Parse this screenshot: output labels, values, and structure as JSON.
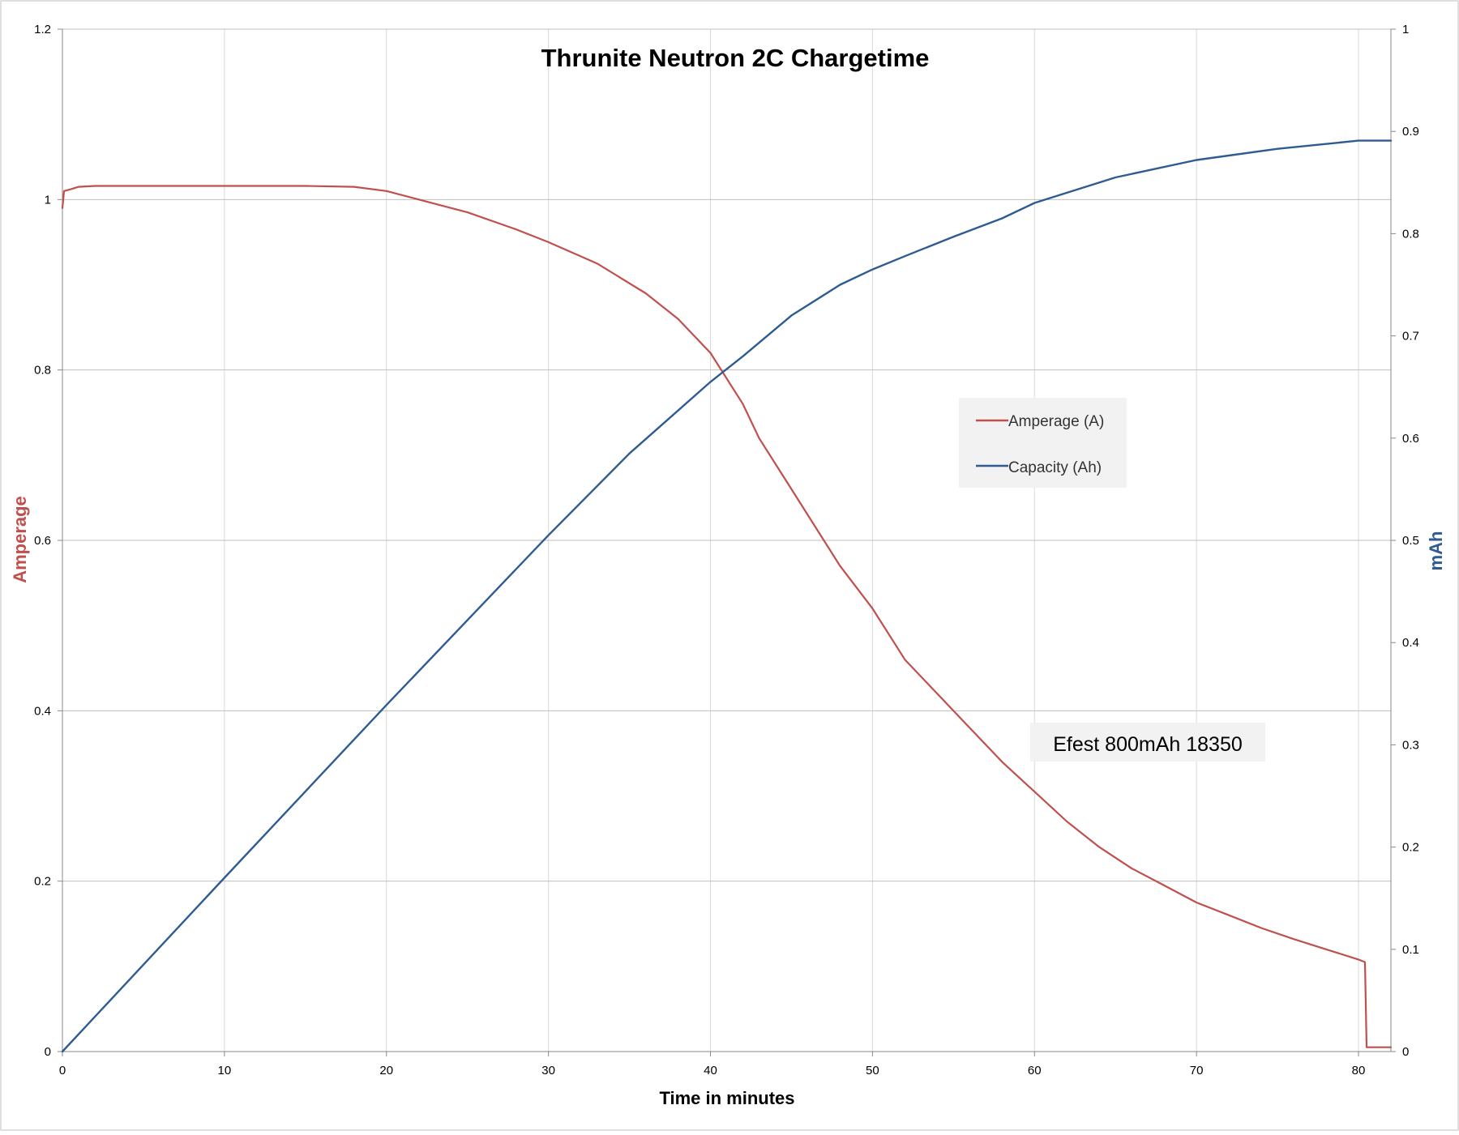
{
  "chart_data": {
    "type": "line",
    "title": "Thrunite Neutron 2C Chargetime",
    "xlabel": "Time in minutes",
    "ylabel_left": "Amperage",
    "ylabel_right": "mAh",
    "annotation": "Efest 800mAh 18350",
    "xlim": [
      0,
      82
    ],
    "ylim_left": [
      0,
      1.2
    ],
    "ylim_right": [
      0,
      1
    ],
    "x_ticks": [
      "0",
      "10",
      "20",
      "30",
      "40",
      "50",
      "60",
      "70",
      "80"
    ],
    "y_left_ticks": [
      "0",
      "0.2",
      "0.4",
      "0.6",
      "0.8",
      "1",
      "1.2"
    ],
    "y_right_ticks": [
      "0",
      "0.1",
      "0.2",
      "0.3",
      "0.4",
      "0.5",
      "0.6",
      "0.7",
      "0.8",
      "0.9",
      "1"
    ],
    "grid": true,
    "legend_position": "center-right",
    "series": [
      {
        "name": "Amperage (A)",
        "axis": "left",
        "color": "#c0504d",
        "x": [
          0,
          0.1,
          0.5,
          1,
          2,
          5,
          10,
          15,
          18,
          20,
          22,
          25,
          28,
          30,
          33,
          36,
          38,
          40,
          41,
          42,
          43,
          45,
          47,
          48,
          50,
          52,
          54,
          56,
          58,
          60,
          62,
          64,
          66,
          68,
          70,
          72,
          74,
          76,
          78,
          80,
          80.4,
          80.5,
          82
        ],
        "y": [
          0.99,
          1.01,
          1.012,
          1.015,
          1.016,
          1.016,
          1.016,
          1.016,
          1.015,
          1.01,
          1.0,
          0.985,
          0.965,
          0.95,
          0.925,
          0.89,
          0.86,
          0.82,
          0.79,
          0.76,
          0.72,
          0.66,
          0.6,
          0.57,
          0.52,
          0.46,
          0.42,
          0.38,
          0.34,
          0.305,
          0.27,
          0.24,
          0.215,
          0.195,
          0.175,
          0.16,
          0.145,
          0.132,
          0.12,
          0.108,
          0.105,
          0.005,
          0.005
        ]
      },
      {
        "name": "Capacity (Ah)",
        "axis": "right",
        "color": "#2e5c92",
        "x": [
          0,
          10,
          20,
          30,
          35,
          40,
          42,
          45,
          48,
          50,
          52,
          55,
          58,
          60,
          65,
          70,
          75,
          80,
          82
        ],
        "y": [
          0,
          0.17,
          0.339,
          0.505,
          0.585,
          0.655,
          0.68,
          0.72,
          0.75,
          0.765,
          0.778,
          0.797,
          0.815,
          0.83,
          0.855,
          0.872,
          0.883,
          0.891,
          0.891
        ]
      }
    ]
  }
}
